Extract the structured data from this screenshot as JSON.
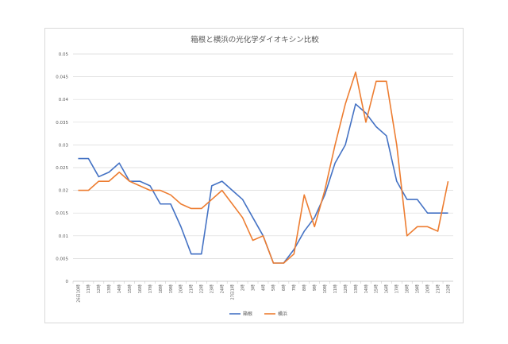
{
  "chart_data": {
    "type": "line",
    "title": "箱根と横浜の光化学ダイオキシン比較",
    "xlabel": "",
    "ylabel": "",
    "ylim": [
      0,
      0.05
    ],
    "y_ticks": [
      "0",
      "0.005",
      "0.01",
      "0.015",
      "0.02",
      "0.025",
      "0.03",
      "0.035",
      "0.04",
      "0.045",
      "0.05"
    ],
    "grid": true,
    "legend_position": "bottom",
    "categories": [
      "26日10時",
      "11時",
      "12時",
      "13時",
      "14時",
      "15時",
      "16時",
      "17時",
      "18時",
      "19時",
      "20時",
      "21時",
      "22時",
      "23時",
      "24時",
      "27日1時",
      "2時",
      "3時",
      "4時",
      "5時",
      "6時",
      "7時",
      "8時",
      "9時",
      "10時",
      "11時",
      "12時",
      "13時",
      "14時",
      "15時",
      "16時",
      "17時",
      "18時",
      "19時",
      "20時",
      "21時",
      "22時"
    ],
    "series": [
      {
        "name": "箱根",
        "color": "#4472C4",
        "values": [
          0.027,
          0.027,
          0.023,
          0.024,
          0.026,
          0.022,
          0.022,
          0.021,
          0.017,
          0.017,
          0.012,
          0.006,
          0.006,
          0.021,
          0.022,
          0.02,
          0.018,
          0.014,
          0.01,
          0.004,
          0.004,
          0.007,
          0.011,
          0.014,
          0.019,
          0.026,
          0.03,
          0.039,
          0.037,
          0.034,
          0.032,
          0.022,
          0.018,
          0.018,
          0.015,
          0.015,
          0.015
        ]
      },
      {
        "name": "横浜",
        "color": "#ED7D31",
        "values": [
          0.02,
          0.02,
          0.022,
          0.022,
          0.024,
          0.022,
          0.021,
          0.02,
          0.02,
          0.019,
          0.017,
          0.016,
          0.016,
          0.018,
          0.02,
          0.017,
          0.014,
          0.009,
          0.01,
          0.004,
          0.004,
          0.006,
          0.019,
          0.012,
          0.02,
          0.03,
          0.039,
          0.046,
          0.035,
          0.044,
          0.044,
          0.03,
          0.01,
          0.012,
          0.012,
          0.011,
          0.022
        ]
      }
    ]
  }
}
